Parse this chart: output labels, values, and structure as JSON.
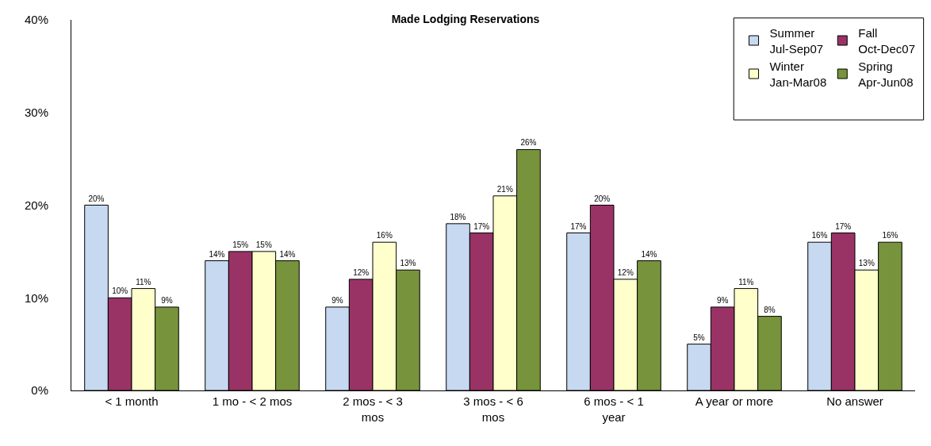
{
  "chart_data": {
    "type": "bar",
    "title": "Made Lodging Reservations",
    "categories": [
      "< 1 month",
      "1 mo - < 2 mos",
      "2 mos - < 3 mos",
      "3 mos - < 6 mos",
      "6 mos - < 1 year",
      "A year or more",
      "No answer"
    ],
    "series": [
      {
        "name": "Summer\nJul-Sep07",
        "color": "#c6d9f1",
        "values": [
          20,
          14,
          9,
          18,
          17,
          5,
          16
        ],
        "value_labels": [
          "20%",
          "14%",
          "9%",
          "18%",
          "17%",
          "5%",
          "16%"
        ]
      },
      {
        "name": "Fall\nOct-Dec07",
        "color": "#993366",
        "values": [
          10,
          15,
          12,
          17,
          20,
          9,
          17
        ],
        "value_labels": [
          "10%",
          "15%",
          "12%",
          "17%",
          "20%",
          "9%",
          "17%"
        ]
      },
      {
        "name": "Winter\nJan-Mar08",
        "color": "#ffffcc",
        "values": [
          11,
          15,
          16,
          21,
          12,
          11,
          13
        ],
        "value_labels": [
          "11%",
          "15%",
          "16%",
          "21%",
          "12%",
          "11%",
          "13%"
        ]
      },
      {
        "name": "Spring\nApr-Jun08",
        "color": "#77933c",
        "values": [
          9,
          14,
          13,
          26,
          14,
          8,
          16
        ],
        "value_labels": [
          "9%",
          "14%",
          "13%",
          "26%",
          "14%",
          "8%",
          "16%"
        ]
      }
    ],
    "ylim": [
      0,
      40
    ],
    "yticks": [
      {
        "value": 0,
        "label": "0%"
      },
      {
        "value": 10,
        "label": "10%"
      },
      {
        "value": 20,
        "label": "20%"
      },
      {
        "value": 30,
        "label": "30%"
      },
      {
        "value": 40,
        "label": "40%"
      }
    ],
    "legend": "top right"
  }
}
